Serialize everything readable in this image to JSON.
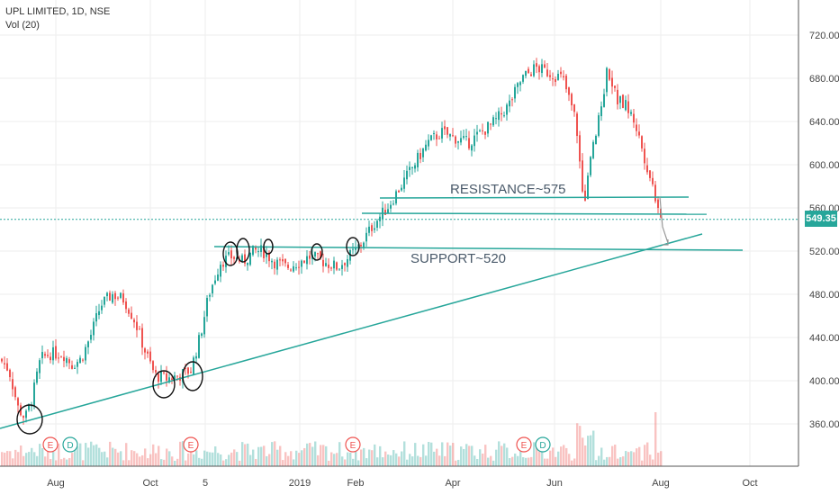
{
  "header": {
    "symbol_line": "UPL LIMITED, 1D, NSE",
    "indicator_line": "Vol (20)"
  },
  "last_price": "549.35",
  "annotations": {
    "resistance": "RESISTANCE~575",
    "support": "SUPPORT~520"
  },
  "event_markers": [
    "E",
    "D",
    "E",
    "E",
    "E",
    "D"
  ],
  "colors": {
    "up": "#26a69a",
    "down": "#ef5350",
    "line": "#26a69a",
    "grid": "#eeeeee"
  },
  "chart_data": {
    "type": "candlestick",
    "y_axis": {
      "ticks": [
        360,
        400,
        440,
        480,
        520,
        560,
        600,
        640,
        680,
        720
      ],
      "tick_labels": [
        "360.00",
        "400.00",
        "440.00",
        "480.00",
        "520.00",
        "560.00",
        "600.00",
        "640.00",
        "680.00",
        "720.00"
      ],
      "range": [
        320,
        740
      ]
    },
    "x_axis": {
      "ticks": [
        "Aug",
        "Oct",
        "5",
        "2019",
        "Feb",
        "Apr",
        "Jun",
        "Aug",
        "Oct"
      ]
    },
    "price_path": [
      [
        0,
        420
      ],
      [
        10,
        410
      ],
      [
        20,
        375
      ],
      [
        28,
        365
      ],
      [
        36,
        385
      ],
      [
        45,
        420
      ],
      [
        55,
        425
      ],
      [
        70,
        425
      ],
      [
        80,
        415
      ],
      [
        90,
        420
      ],
      [
        100,
        440
      ],
      [
        112,
        470
      ],
      [
        125,
        480
      ],
      [
        138,
        475
      ],
      [
        150,
        455
      ],
      [
        160,
        430
      ],
      [
        172,
        405
      ],
      [
        185,
        402
      ],
      [
        200,
        405
      ],
      [
        212,
        410
      ],
      [
        222,
        440
      ],
      [
        232,
        480
      ],
      [
        245,
        510
      ],
      [
        258,
        515
      ],
      [
        270,
        510
      ],
      [
        282,
        520
      ],
      [
        292,
        520
      ],
      [
        305,
        510
      ],
      [
        318,
        505
      ],
      [
        332,
        510
      ],
      [
        345,
        515
      ],
      [
        360,
        510
      ],
      [
        375,
        505
      ],
      [
        388,
        515
      ],
      [
        400,
        525
      ],
      [
        415,
        545
      ],
      [
        430,
        560
      ],
      [
        445,
        580
      ],
      [
        460,
        600
      ],
      [
        475,
        620
      ],
      [
        490,
        630
      ],
      [
        505,
        625
      ],
      [
        520,
        620
      ],
      [
        535,
        630
      ],
      [
        550,
        640
      ],
      [
        565,
        655
      ],
      [
        580,
        680
      ],
      [
        595,
        690
      ],
      [
        610,
        685
      ],
      [
        625,
        680
      ],
      [
        640,
        640
      ],
      [
        648,
        560
      ],
      [
        655,
        600
      ],
      [
        665,
        640
      ],
      [
        675,
        690
      ],
      [
        685,
        660
      ],
      [
        695,
        655
      ],
      [
        705,
        640
      ],
      [
        715,
        610
      ],
      [
        725,
        580
      ],
      [
        732,
        560
      ],
      [
        736,
        549
      ]
    ],
    "lines": [
      {
        "label": "RESISTANCE~575",
        "y": 575
      },
      {
        "label": "SUPPORT~520",
        "y": 520
      }
    ]
  }
}
